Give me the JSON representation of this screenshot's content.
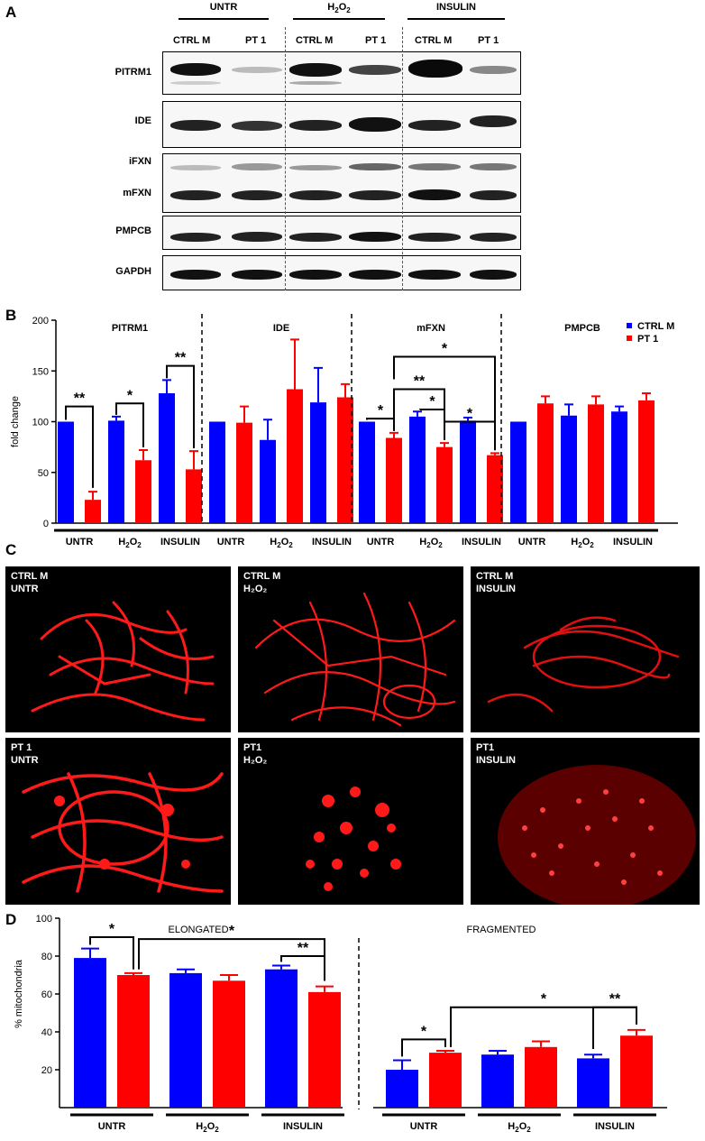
{
  "panels": [
    "A",
    "B",
    "C",
    "D"
  ],
  "panel_a": {
    "conditions": [
      {
        "main": "UNTR",
        "sub": "",
        "tail": ""
      },
      {
        "main": "H",
        "sub": "2",
        "tail": "O",
        "sub2": "2"
      },
      {
        "main": "INSULIN",
        "sub": "",
        "tail": ""
      }
    ],
    "lanes": [
      "CTRL M",
      "PT 1",
      "CTRL M",
      "PT 1",
      "CTRL M",
      "PT 1"
    ],
    "blots": [
      {
        "names": [
          "PITRM1"
        ]
      },
      {
        "names": [
          "IDE"
        ]
      },
      {
        "names": [
          "iFXN",
          "mFXN"
        ]
      },
      {
        "names": [
          "PMPCB"
        ]
      },
      {
        "names": [
          "GAPDH"
        ]
      }
    ]
  },
  "chart_data": [
    {
      "panel": "B",
      "type": "bar",
      "ylabel": "fold change",
      "ylim": [
        0,
        200
      ],
      "yticks": [
        0,
        50,
        100,
        150,
        200
      ],
      "legend": [
        "CTRL M",
        "PT 1"
      ],
      "colors": {
        "ctrl": "#0000ff",
        "pt": "#ff0000"
      },
      "groups": [
        "UNTR",
        "H2O2",
        "INSULIN"
      ],
      "subplots": [
        {
          "title": "PITRM1",
          "ctrl": [
            100,
            101,
            128
          ],
          "ctrl_err": [
            0,
            4,
            13
          ],
          "pt": [
            23,
            62,
            53
          ],
          "pt_err": [
            8,
            10,
            18
          ]
        },
        {
          "title": "IDE",
          "ctrl": [
            100,
            82,
            119
          ],
          "ctrl_err": [
            0,
            20,
            34
          ],
          "pt": [
            99,
            132,
            124
          ],
          "pt_err": [
            16,
            49,
            13
          ]
        },
        {
          "title": "mFXN",
          "ctrl": [
            100,
            105,
            101
          ],
          "ctrl_err": [
            0,
            5,
            3
          ],
          "pt": [
            84,
            75,
            67
          ],
          "pt_err": [
            5,
            4,
            2
          ]
        },
        {
          "title": "PMPCB",
          "ctrl": [
            100,
            106,
            110
          ],
          "ctrl_err": [
            0,
            11,
            5
          ],
          "pt": [
            118,
            117,
            121
          ],
          "pt_err": [
            7,
            8,
            7
          ]
        }
      ],
      "significance": [
        "**",
        "*",
        "**",
        "*",
        "**",
        "*",
        "*",
        "*"
      ]
    },
    {
      "panel": "D",
      "type": "bar",
      "ylabel": "% mitochondria",
      "ylim": [
        0,
        100
      ],
      "yticks": [
        20,
        40,
        60,
        80,
        100
      ],
      "groups": [
        "UNTR",
        "H2O2",
        "INSULIN"
      ],
      "subplots": [
        {
          "title": "ELONGATED",
          "ctrl": [
            79,
            71,
            73
          ],
          "ctrl_err": [
            5,
            2,
            2
          ],
          "pt": [
            70,
            67,
            61
          ],
          "pt_err": [
            1,
            3,
            3
          ]
        },
        {
          "title": "FRAGMENTED",
          "ctrl": [
            20,
            28,
            26
          ],
          "ctrl_err": [
            5,
            2,
            2
          ],
          "pt": [
            29,
            32,
            38
          ],
          "pt_err": [
            1,
            3,
            3
          ]
        }
      ],
      "significance": [
        "*",
        "*",
        "**",
        "*",
        "*",
        "**"
      ]
    }
  ],
  "panel_c": {
    "images": [
      {
        "line1": "CTRL M",
        "line2": "UNTR"
      },
      {
        "line1": "CTRL M",
        "line2": "H₂O₂"
      },
      {
        "line1": "CTRL M",
        "line2": "INSULIN"
      },
      {
        "line1": "PT 1",
        "line2": "UNTR"
      },
      {
        "line1": "PT1",
        "line2": "H₂O₂"
      },
      {
        "line1": "PT1",
        "line2": "INSULIN"
      }
    ]
  },
  "group_labels": {
    "untr": "UNTR",
    "h": "H",
    "two": "2",
    "o": "O",
    "insulin": "INSULIN"
  }
}
